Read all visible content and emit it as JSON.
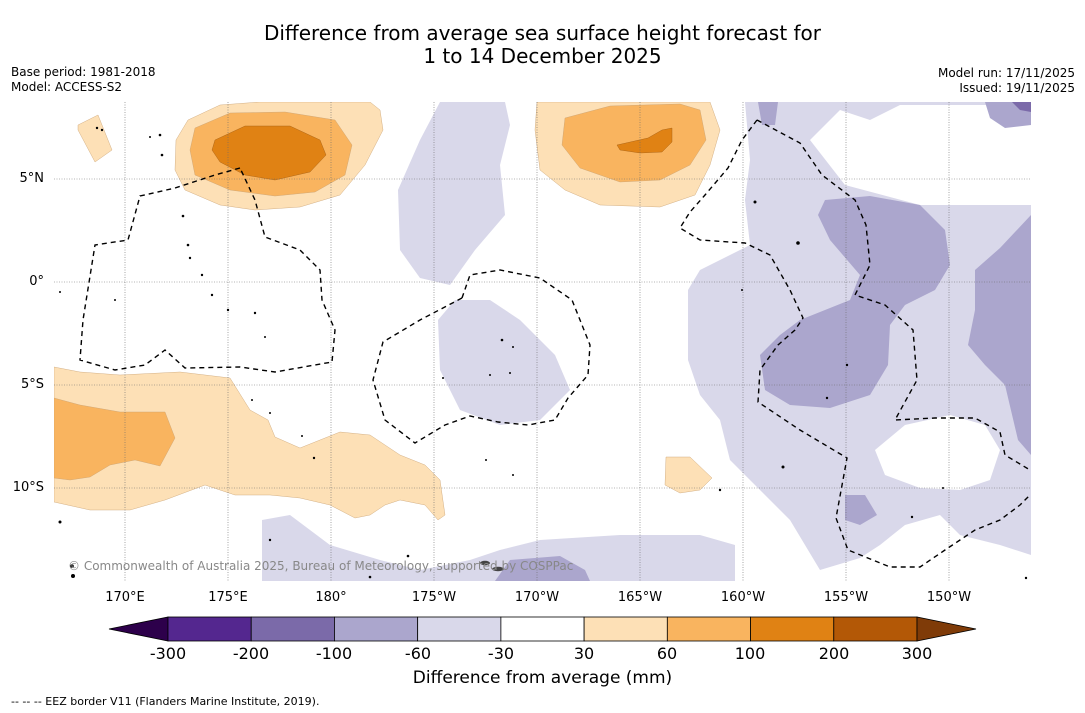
{
  "title": {
    "line1": "Difference from average sea surface height forecast for",
    "line2": "1 to 14 December 2025"
  },
  "meta": {
    "base_period": "Base period: 1981-2018",
    "model": "Model: ACCESS-S2",
    "model_run": "Model run: 17/11/2025",
    "issued": "Issued: 19/11/2025"
  },
  "axes": {
    "lat_labels": [
      "5°N",
      "0°",
      "5°S",
      "10°S"
    ],
    "lon_labels": [
      "170°E",
      "175°E",
      "180°",
      "175°W",
      "170°W",
      "165°W",
      "160°W",
      "155°W",
      "150°W"
    ]
  },
  "copyright": "© Commonwealth of Australia 2025, Bureau of Meteorology, supported by COSPPac",
  "colorbar": {
    "ticks": [
      "-300",
      "-200",
      "-100",
      "-60",
      "-30",
      "30",
      "60",
      "100",
      "200",
      "300"
    ],
    "colors": [
      "#54278f",
      "#7b6aa9",
      "#aba6cd",
      "#d9d8ea",
      "#ffffff",
      "#fde0b6",
      "#f9b45f",
      "#e08214",
      "#b35806"
    ],
    "under_color": "#2d004b",
    "over_color": "#7f3b08",
    "label": "Difference from average (mm)"
  },
  "legend": {
    "eez": "--  --  -- EEZ border V11 (Flanders Marine Institute, 2019)."
  },
  "colors": {
    "neg_light": "#d9d8ea",
    "neg_medium": "#aba6cd",
    "neg_strong": "#7b6aa9",
    "pos_light": "#fde0b6",
    "pos_medium": "#f9b45f",
    "pos_strong": "#e08214"
  }
}
